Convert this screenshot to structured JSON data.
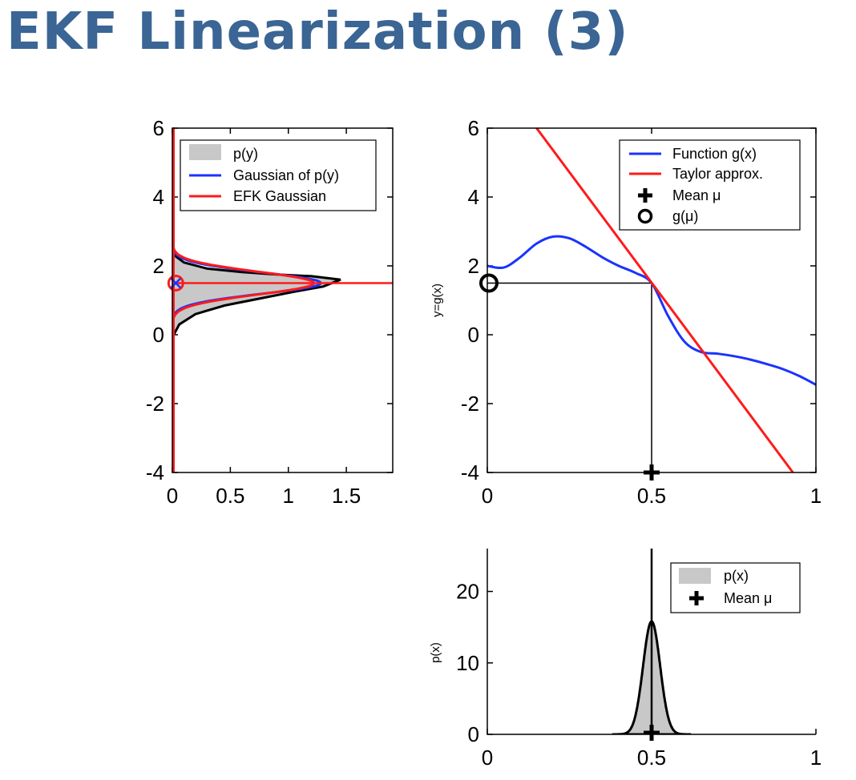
{
  "title": "EKF Linearization (3)",
  "colors": {
    "title": "#3a6594",
    "function": "#1a33ff",
    "taylor": "#ff1a1a",
    "shade": "#c8c8c8",
    "ink": "#000000"
  },
  "chart_data": [
    {
      "id": "py",
      "type": "area",
      "orientation": "horizontal",
      "xlim": [
        0,
        1.9
      ],
      "ylim": [
        -4,
        6
      ],
      "xticks": [
        "0",
        "0.5",
        "1",
        "1.5"
      ],
      "xtick_values": [
        0,
        0.5,
        1,
        1.5
      ],
      "yticks": [
        "6",
        "4",
        "2",
        "0",
        "-2",
        "-4"
      ],
      "ytick_values": [
        6,
        4,
        2,
        0,
        -2,
        -4
      ],
      "legend": {
        "position": "top-right",
        "entries": [
          "p(y)",
          "Gaussian of p(y)",
          "EFK Gaussian"
        ]
      },
      "series": [
        {
          "name": "p(y)",
          "kind": "filled-density",
          "points": [
            [
              0.0,
              -4
            ],
            [
              0.0,
              0.0
            ],
            [
              0.02,
              0.05
            ],
            [
              0.06,
              0.3
            ],
            [
              0.2,
              0.6
            ],
            [
              0.45,
              0.85
            ],
            [
              0.75,
              1.05
            ],
            [
              1.05,
              1.25
            ],
            [
              1.3,
              1.4
            ],
            [
              1.45,
              1.6
            ],
            [
              1.2,
              1.7
            ],
            [
              0.9,
              1.75
            ],
            [
              0.6,
              1.82
            ],
            [
              0.3,
              1.92
            ],
            [
              0.1,
              2.1
            ],
            [
              0.02,
              2.3
            ],
            [
              0.0,
              2.5
            ],
            [
              0.0,
              6
            ]
          ]
        },
        {
          "name": "Gaussian of p(y)",
          "mean": 1.5,
          "sigma": 0.31,
          "peak": 1.28
        },
        {
          "name": "EFK Gaussian",
          "mean": 1.5,
          "sigma": 0.33,
          "peak": 1.22
        }
      ],
      "markers": [
        {
          "label": "mean",
          "x": 0.03,
          "y": 1.5
        }
      ]
    },
    {
      "id": "gx",
      "type": "line",
      "xlim": [
        0,
        1
      ],
      "ylim": [
        -4,
        6
      ],
      "ylabel": "y=g(x)",
      "xticks": [
        "0",
        "0.5",
        "1"
      ],
      "xtick_values": [
        0,
        0.5,
        1
      ],
      "yticks": [
        "6",
        "4",
        "2",
        "0",
        "-2",
        "-4"
      ],
      "ytick_values": [
        6,
        4,
        2,
        0,
        -2,
        -4
      ],
      "legend": {
        "position": "top-right",
        "entries": [
          "Function g(x)",
          "Taylor approx.",
          "Mean μ",
          "g(μ)"
        ]
      },
      "series": [
        {
          "name": "Function g(x)",
          "x": [
            0.0,
            0.05,
            0.1,
            0.15,
            0.2,
            0.25,
            0.3,
            0.35,
            0.4,
            0.45,
            0.5,
            0.55,
            0.6,
            0.65,
            0.7,
            0.75,
            0.8,
            0.85,
            0.9,
            0.95,
            1.0
          ],
          "y": [
            2.0,
            1.95,
            2.25,
            2.65,
            2.85,
            2.8,
            2.55,
            2.25,
            2.0,
            1.8,
            1.5,
            0.55,
            -0.2,
            -0.5,
            -0.55,
            -0.62,
            -0.72,
            -0.85,
            -1.0,
            -1.2,
            -1.45
          ]
        },
        {
          "name": "Taylor approx.",
          "x": [
            0.15,
            0.93
          ],
          "y": [
            6.0,
            -4.0
          ]
        }
      ],
      "mean_mu": {
        "x": 0.5,
        "y": -4
      },
      "g_mu": {
        "x": 0.0,
        "y": 1.5
      },
      "guide": {
        "x": 0.5,
        "y": 1.5
      }
    },
    {
      "id": "px",
      "type": "area",
      "xlim": [
        0,
        1
      ],
      "ylim": [
        0,
        26
      ],
      "ylabel": "p(x)",
      "xticks": [
        "0",
        "0.5",
        "1"
      ],
      "xtick_values": [
        0,
        0.5,
        1
      ],
      "yticks": [
        "20",
        "10",
        "0"
      ],
      "ytick_values": [
        20,
        10,
        0
      ],
      "legend": {
        "position": "top-right",
        "entries": [
          "p(x)",
          "Mean μ"
        ]
      },
      "series": [
        {
          "name": "p(x)",
          "mean": 0.5,
          "sigma": 0.026,
          "peak": 15.8
        }
      ],
      "mean_mu": {
        "x": 0.5,
        "y": 0
      },
      "mean_line": {
        "x": 0.5
      }
    }
  ]
}
